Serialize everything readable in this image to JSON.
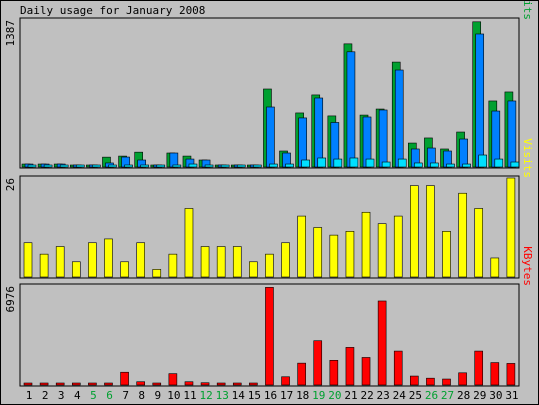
{
  "chart_data": {
    "type": "bar",
    "title": "Daily usage for January 2008",
    "x": [
      1,
      2,
      3,
      4,
      5,
      6,
      7,
      8,
      9,
      10,
      11,
      12,
      13,
      14,
      15,
      16,
      17,
      18,
      19,
      20,
      21,
      22,
      23,
      24,
      25,
      26,
      27,
      28,
      29,
      30,
      31
    ],
    "weekend_days": [
      5,
      6,
      12,
      13,
      19,
      20,
      26,
      27
    ],
    "colors": {
      "hits": "#00a030",
      "files": "#0080ff",
      "pages": "#00e0ff",
      "visits": "#ffff00",
      "kbytes": "#ff0000",
      "weekend_label": "#00a030",
      "background": "#c0c0c0",
      "frame": "#000000"
    },
    "panels": [
      {
        "id": "hits-files-pages",
        "ymax_label": "1387",
        "ymax": 1387,
        "ylabel_parts": [
          {
            "text": "Pages",
            "color": "#00e0ff"
          },
          {
            "text": "/",
            "color": "#000000"
          },
          {
            "text": "Files",
            "color": "#0080ff"
          },
          {
            "text": "/",
            "color": "#000000"
          },
          {
            "text": "Hits",
            "color": "#00a030"
          }
        ],
        "series": [
          {
            "name": "Hits",
            "color": "#00a030",
            "values": [
              28,
              28,
              28,
              9,
              19,
              93,
              103,
              140,
              18,
              132,
              103,
              66,
              9,
              9,
              9,
              736,
              151,
              510,
              680,
              482,
              1162,
              490,
              547,
              990,
              226,
              274,
              170,
              330,
              1370,
              623,
              708
            ]
          },
          {
            "name": "Files",
            "color": "#0080ff",
            "values": [
              28,
              28,
              28,
              9,
              19,
              38,
              94,
              66,
              18,
              132,
              75,
              66,
              9,
              9,
              9,
              566,
              132,
              463,
              651,
              420,
              1087,
              472,
              538,
              915,
              170,
              179,
              151,
              264,
              1255,
              528,
              623
            ]
          },
          {
            "name": "Pages",
            "color": "#00e0ff",
            "values": [
              9,
              9,
              9,
              9,
              9,
              19,
              19,
              19,
              9,
              19,
              28,
              19,
              9,
              9,
              9,
              28,
              28,
              66,
              85,
              75,
              85,
              75,
              47,
              75,
              38,
              38,
              28,
              28,
              113,
              75,
              47
            ]
          }
        ]
      },
      {
        "id": "visits",
        "ymax_label": "26",
        "ymax": 26,
        "ylabel_parts": [
          {
            "text": "Visits",
            "color": "#ffff00"
          }
        ],
        "series": [
          {
            "name": "Visits",
            "color": "#ffff00",
            "values": [
              9,
              6,
              8,
              4,
              9,
              10,
              4,
              9,
              2,
              6,
              18,
              8,
              8,
              8,
              4,
              6,
              9,
              16,
              13,
              11,
              12,
              17,
              14,
              16,
              24,
              24,
              12,
              22,
              18,
              5,
              26
            ]
          }
        ]
      },
      {
        "id": "kbytes",
        "ymax_label": "6976",
        "ymax": 6976,
        "ylabel_parts": [
          {
            "text": "KBytes",
            "color": "#ff0000"
          }
        ],
        "series": [
          {
            "name": "KBytes",
            "color": "#ff0000",
            "values": [
              70,
              70,
              70,
              70,
              70,
              140,
              900,
              230,
              70,
              800,
              230,
              160,
              140,
              70,
              140,
              6880,
              580,
              1540,
              3120,
              1740,
              2650,
              1940,
              5920,
              2390,
              630,
              480,
              420,
              860,
              2390,
              1580,
              1520
            ]
          }
        ]
      }
    ]
  }
}
